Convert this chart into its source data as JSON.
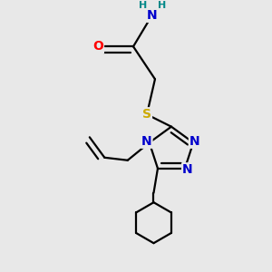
{
  "bg_color": "#e8e8e8",
  "atom_colors": {
    "N": "#0000cc",
    "O": "#ff0000",
    "S": "#ccaa00",
    "C": "#000000",
    "H": "#008888"
  },
  "bond_color": "#000000",
  "bond_width": 1.6,
  "font_size_atom": 10,
  "font_size_h": 8,
  "figsize": [
    3.0,
    3.0
  ],
  "dpi": 100,
  "xlim": [
    0,
    10
  ],
  "ylim": [
    0,
    10
  ]
}
